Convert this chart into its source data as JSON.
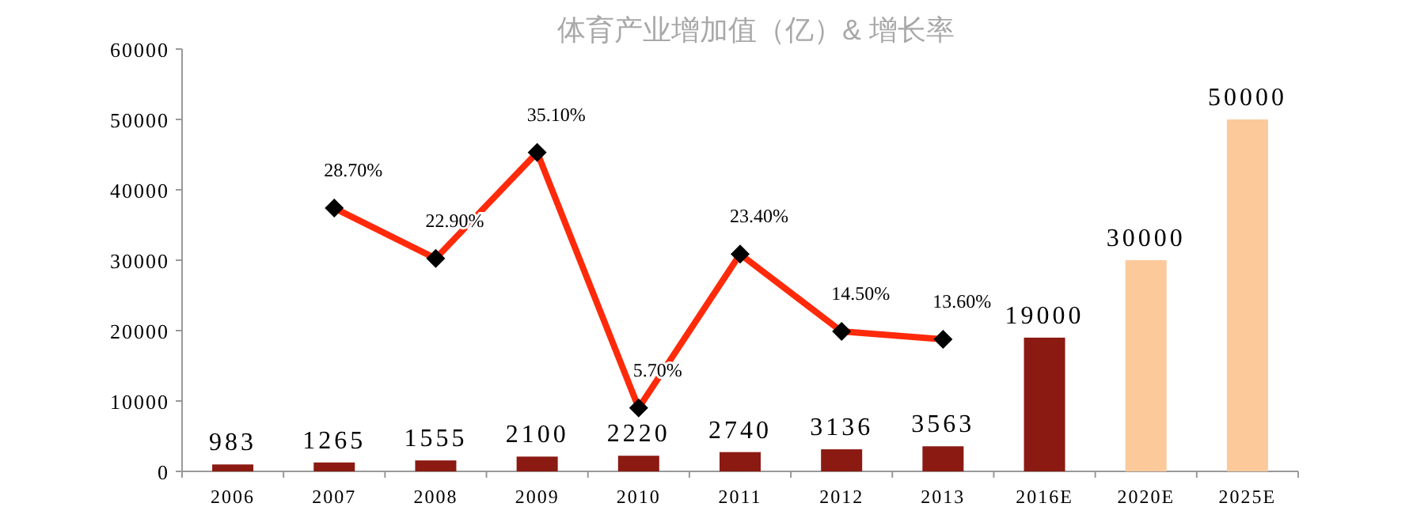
{
  "chart_data": {
    "type": "bar",
    "title": "体育产业增加值（亿）& 增长率",
    "categories": [
      "2006",
      "2007",
      "2008",
      "2009",
      "2010",
      "2011",
      "2012",
      "2013",
      "2016E",
      "2020E",
      "2025E"
    ],
    "series": [
      {
        "values": [
          983,
          1265,
          1555,
          2100,
          2220,
          2740,
          3136,
          3563,
          19000,
          30000,
          50000
        ],
        "colors": [
          "#8b1a12",
          "#8b1a12",
          "#8b1a12",
          "#8b1a12",
          "#8b1a12",
          "#8b1a12",
          "#8b1a12",
          "#8b1a12",
          "#8b1a12",
          "#fcc99b",
          "#fcc99b"
        ],
        "value_labels": [
          "983",
          "1265",
          "1555",
          "2100",
          "2220",
          "2740",
          "3136",
          "3563",
          "19000",
          "30000",
          "50000"
        ]
      },
      {
        "type": "line",
        "axis": "y2",
        "color": "#ff2a0a",
        "marker": "diamond",
        "values": [
          null,
          28.7,
          22.9,
          35.1,
          5.7,
          23.4,
          14.5,
          13.6,
          null,
          null,
          null
        ],
        "value_labels": [
          null,
          "28.70%",
          "22.90%",
          "35.10%",
          "5.70%",
          "23.40%",
          "14.50%",
          "13.60%",
          null,
          null,
          null
        ]
      }
    ],
    "ylim": [
      0,
      60000
    ],
    "yticks": [
      0,
      10000,
      20000,
      30000,
      40000,
      50000,
      60000
    ],
    "y2lim": [
      -1.6,
      47
    ],
    "grid": false
  }
}
